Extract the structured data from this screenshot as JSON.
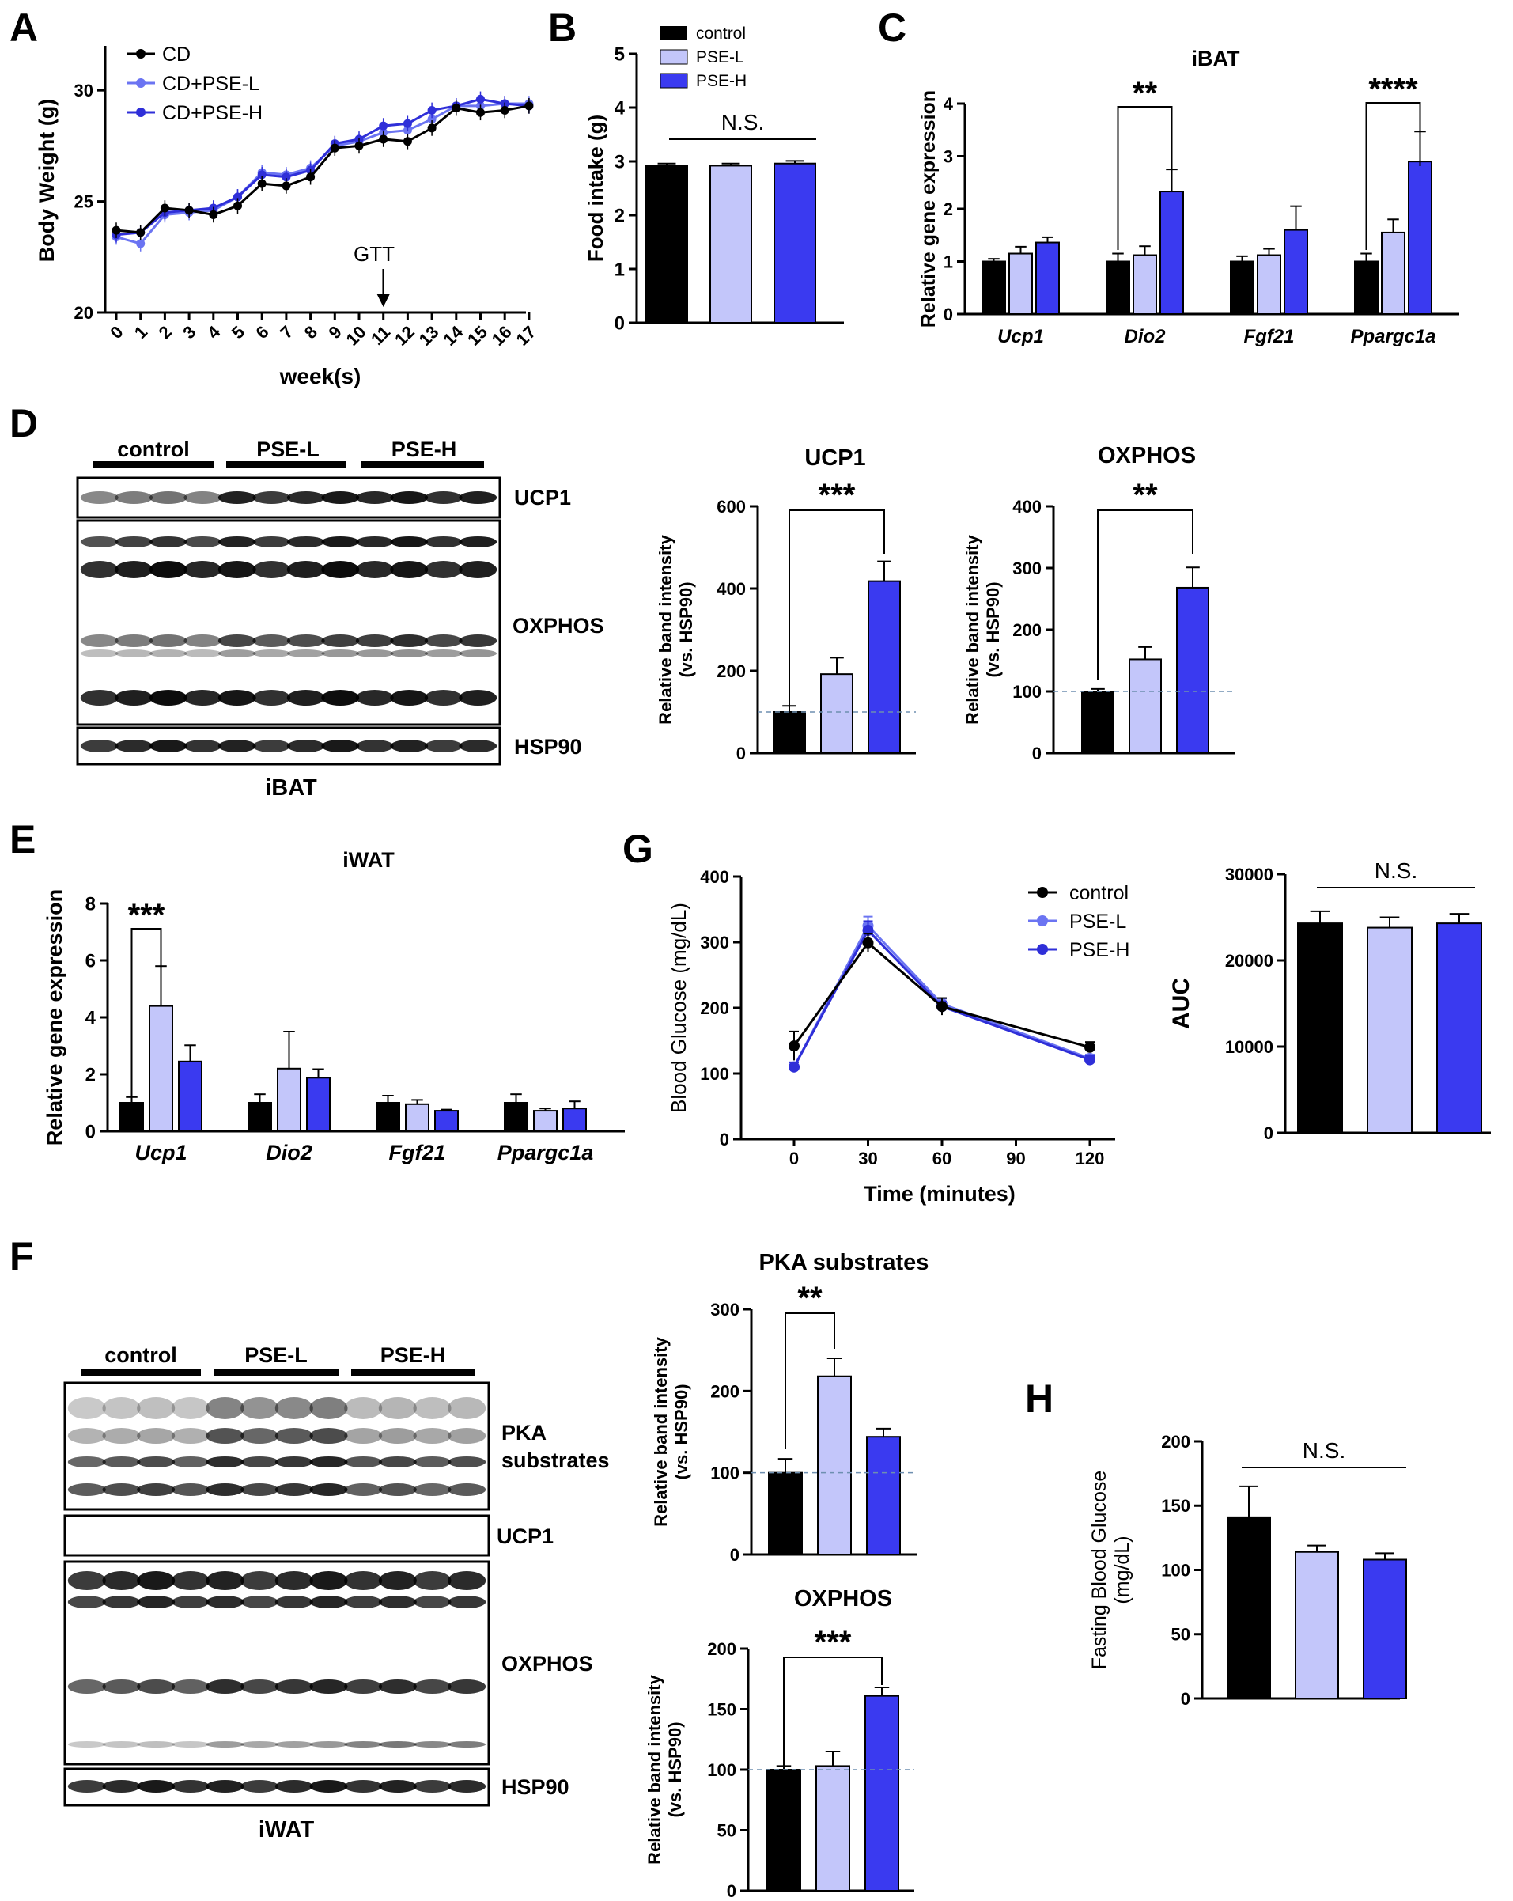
{
  "panels": {
    "a": "A",
    "b": "B",
    "c": "C",
    "d": "D",
    "e": "E",
    "f": "F",
    "g": "G",
    "h": "H"
  },
  "colors": {
    "control": "#000000",
    "low": "#c3c6fa",
    "high": "#3a3af0",
    "low_line": "#6b74f2",
    "high_line": "#2f2fd8",
    "oxphos_iwat_low": "#8283f4"
  },
  "blots": {
    "ibat_groups": [
      "control",
      "PSE-L",
      "PSE-H"
    ],
    "ibat_bands": [
      "UCP1",
      "OXPHOS",
      "HSP90"
    ],
    "ibat_tissue": "iBAT",
    "iwat_groups": [
      "control",
      "PSE-L",
      "PSE-H"
    ],
    "iwat_bands": [
      "PKA",
      "substrates",
      "UCP1",
      "OXPHOS",
      "HSP90"
    ],
    "iwat_tissue": "iWAT"
  },
  "chart_data": [
    {
      "id": "A",
      "type": "line",
      "title": "",
      "xlabel": "week(s)",
      "ylabel": "Body Weight (g)",
      "ylim": [
        20,
        32
      ],
      "yticks": [
        "20",
        "25",
        "30"
      ],
      "x": [
        0,
        1,
        2,
        3,
        4,
        5,
        6,
        7,
        8,
        9,
        10,
        11,
        12,
        13,
        14,
        15,
        16,
        17
      ],
      "xtick_labels": [
        "0",
        "1",
        "2",
        "3",
        "4",
        "5",
        "6",
        "7",
        "8",
        "9",
        "10",
        "11",
        "12",
        "13",
        "14",
        "15",
        "16",
        "17"
      ],
      "annotation": "GTT",
      "annotation_x": 11,
      "series": [
        {
          "name": "CD",
          "values": [
            23.7,
            23.6,
            24.7,
            24.6,
            24.4,
            24.8,
            25.8,
            25.7,
            26.1,
            27.4,
            27.5,
            27.8,
            27.7,
            28.3,
            29.2,
            29.0,
            29.1,
            29.3
          ]
        },
        {
          "name": "CD+PSE-L",
          "values": [
            23.4,
            23.1,
            24.4,
            24.5,
            24.6,
            25.2,
            26.3,
            26.2,
            26.5,
            27.5,
            27.7,
            28.1,
            28.2,
            28.7,
            29.3,
            29.3,
            29.4,
            29.4
          ]
        },
        {
          "name": "CD+PSE-H",
          "values": [
            23.5,
            23.6,
            24.5,
            24.6,
            24.7,
            25.2,
            26.2,
            26.1,
            26.4,
            27.6,
            27.8,
            28.4,
            28.5,
            29.1,
            29.3,
            29.6,
            29.4,
            29.3
          ]
        }
      ]
    },
    {
      "id": "B",
      "type": "bar",
      "title": "",
      "ylabel": "Food intake (g)",
      "ylim": [
        0,
        5
      ],
      "yticks": [
        "0",
        "1",
        "2",
        "3",
        "4",
        "5"
      ],
      "categories": [
        "control",
        "PSE-L",
        "PSE-H"
      ],
      "values": [
        2.92,
        2.92,
        2.96
      ],
      "errors": [
        0.04,
        0.04,
        0.05
      ],
      "significance": "N.S."
    },
    {
      "id": "C",
      "type": "bar",
      "title": "iBAT",
      "ylabel": "Relative gene expression",
      "ylim": [
        0,
        4
      ],
      "yticks": [
        "0",
        "1",
        "2",
        "3",
        "4"
      ],
      "categories": [
        "Ucp1",
        "Dio2",
        "Fgf21",
        "Ppargc1a"
      ],
      "series": [
        {
          "name": "control",
          "values": [
            1.0,
            1.0,
            1.0,
            1.0
          ],
          "errors": [
            0.05,
            0.15,
            0.1,
            0.15
          ]
        },
        {
          "name": "PSE-L",
          "values": [
            1.15,
            1.12,
            1.12,
            1.55
          ],
          "errors": [
            0.13,
            0.17,
            0.12,
            0.25
          ]
        },
        {
          "name": "PSE-H",
          "values": [
            1.36,
            2.33,
            1.6,
            2.9
          ],
          "errors": [
            0.1,
            0.42,
            0.45,
            0.57
          ]
        }
      ],
      "brackets": [
        {
          "group": 1,
          "label": "**"
        },
        {
          "group": 3,
          "label": "****"
        }
      ]
    },
    {
      "id": "D1",
      "type": "bar",
      "title": "UCP1",
      "ylabel": "Relative band intensity",
      "ylabel2": "(vs. HSP90)",
      "ylim": [
        0,
        600
      ],
      "yticks": [
        "0",
        "200",
        "400",
        "600"
      ],
      "categories": [
        "control",
        "PSE-L",
        "PSE-H"
      ],
      "values": [
        100,
        192,
        418
      ],
      "errors": [
        15,
        40,
        48
      ],
      "significance": "***"
    },
    {
      "id": "D2",
      "type": "bar",
      "title": "OXPHOS",
      "ylabel": "Relative band intensity",
      "ylabel2": "(vs. HSP90)",
      "ylim": [
        0,
        400
      ],
      "yticks": [
        "0",
        "100",
        "200",
        "300",
        "400"
      ],
      "categories": [
        "control",
        "PSE-L",
        "PSE-H"
      ],
      "values": [
        100,
        152,
        268
      ],
      "errors": [
        4,
        20,
        33
      ],
      "significance": "**"
    },
    {
      "id": "E",
      "type": "bar",
      "title": "iWAT",
      "ylabel": "Relative gene expression",
      "ylim": [
        0,
        8
      ],
      "yticks": [
        "0",
        "2",
        "4",
        "6",
        "8"
      ],
      "categories": [
        "Ucp1",
        "Dio2",
        "Fgf21",
        "Ppargc1a"
      ],
      "series": [
        {
          "name": "control",
          "values": [
            1.0,
            1.0,
            1.0,
            1.0
          ],
          "errors": [
            0.2,
            0.3,
            0.25,
            0.3
          ]
        },
        {
          "name": "PSE-L",
          "values": [
            4.4,
            2.2,
            0.95,
            0.72
          ],
          "errors": [
            1.4,
            1.3,
            0.15,
            0.08
          ]
        },
        {
          "name": "PSE-H",
          "values": [
            2.45,
            1.88,
            0.72,
            0.8
          ],
          "errors": [
            0.57,
            0.3,
            0.04,
            0.25
          ]
        }
      ],
      "brackets": [
        {
          "group": 0,
          "pair": [
            0,
            1
          ],
          "label": "***"
        }
      ]
    },
    {
      "id": "G1",
      "type": "line",
      "title": "",
      "xlabel": "Time (minutes)",
      "ylabel": "Blood Glucose (mg/dL)",
      "ylim": [
        0,
        400
      ],
      "yticks": [
        "0",
        "100",
        "200",
        "300",
        "400"
      ],
      "x": [
        0,
        30,
        60,
        90,
        120
      ],
      "xtick_labels": [
        "0",
        "30",
        "60",
        "90",
        "120"
      ],
      "series": [
        {
          "name": "Control",
          "x": [
            0,
            30,
            60,
            120
          ],
          "values": [
            142,
            299,
            202,
            140
          ],
          "errors": [
            22,
            14,
            13,
            8
          ]
        },
        {
          "name": "PSE-L",
          "x": [
            0,
            30,
            60,
            120
          ],
          "values": [
            110,
            325,
            206,
            123
          ],
          "errors": [
            7,
            14,
            8,
            6
          ]
        },
        {
          "name": "PSE-H",
          "x": [
            0,
            30,
            60,
            120
          ],
          "values": [
            110,
            318,
            202,
            121
          ],
          "errors": [
            7,
            14,
            8,
            6
          ]
        }
      ]
    },
    {
      "id": "G2",
      "type": "bar",
      "title": "",
      "ylabel": "AUC",
      "ylim": [
        0,
        30000
      ],
      "yticks": [
        "0",
        "10000",
        "20000",
        "30000"
      ],
      "categories": [
        "control",
        "PSE-L",
        "PSE-H"
      ],
      "values": [
        24300,
        23800,
        24300
      ],
      "errors": [
        1400,
        1200,
        1100
      ],
      "significance": "N.S."
    },
    {
      "id": "F1",
      "type": "bar",
      "title": "PKA substrates",
      "ylabel": "Relative band intensity",
      "ylabel2": "(vs. HSP90)",
      "ylim": [
        0,
        300
      ],
      "yticks": [
        "0",
        "100",
        "200",
        "300"
      ],
      "categories": [
        "control",
        "PSE-L",
        "PSE-H"
      ],
      "values": [
        100,
        218,
        144
      ],
      "errors": [
        17,
        22,
        10
      ],
      "significance": "**"
    },
    {
      "id": "F2",
      "type": "bar",
      "title": "OXPHOS",
      "ylabel": "Relative band intensity",
      "ylabel2": "(vs. HSP90)",
      "ylim": [
        0,
        200
      ],
      "yticks": [
        "0",
        "50",
        "100",
        "150",
        "200"
      ],
      "categories": [
        "control",
        "PSE-L",
        "PSE-H"
      ],
      "values": [
        100,
        103,
        161
      ],
      "errors": [
        3,
        12,
        7
      ],
      "significance": "***"
    },
    {
      "id": "H",
      "type": "bar",
      "title": "",
      "ylabel": "Fasting Blood Glucose",
      "ylabel2": "(mg/dL)",
      "ylim": [
        0,
        200
      ],
      "yticks": [
        "0",
        "50",
        "100",
        "150",
        "200"
      ],
      "categories": [
        "control",
        "PSE-L",
        "PSE-H"
      ],
      "values": [
        141,
        114,
        108
      ],
      "errors": [
        24,
        5,
        5
      ],
      "significance": "N.S."
    }
  ]
}
